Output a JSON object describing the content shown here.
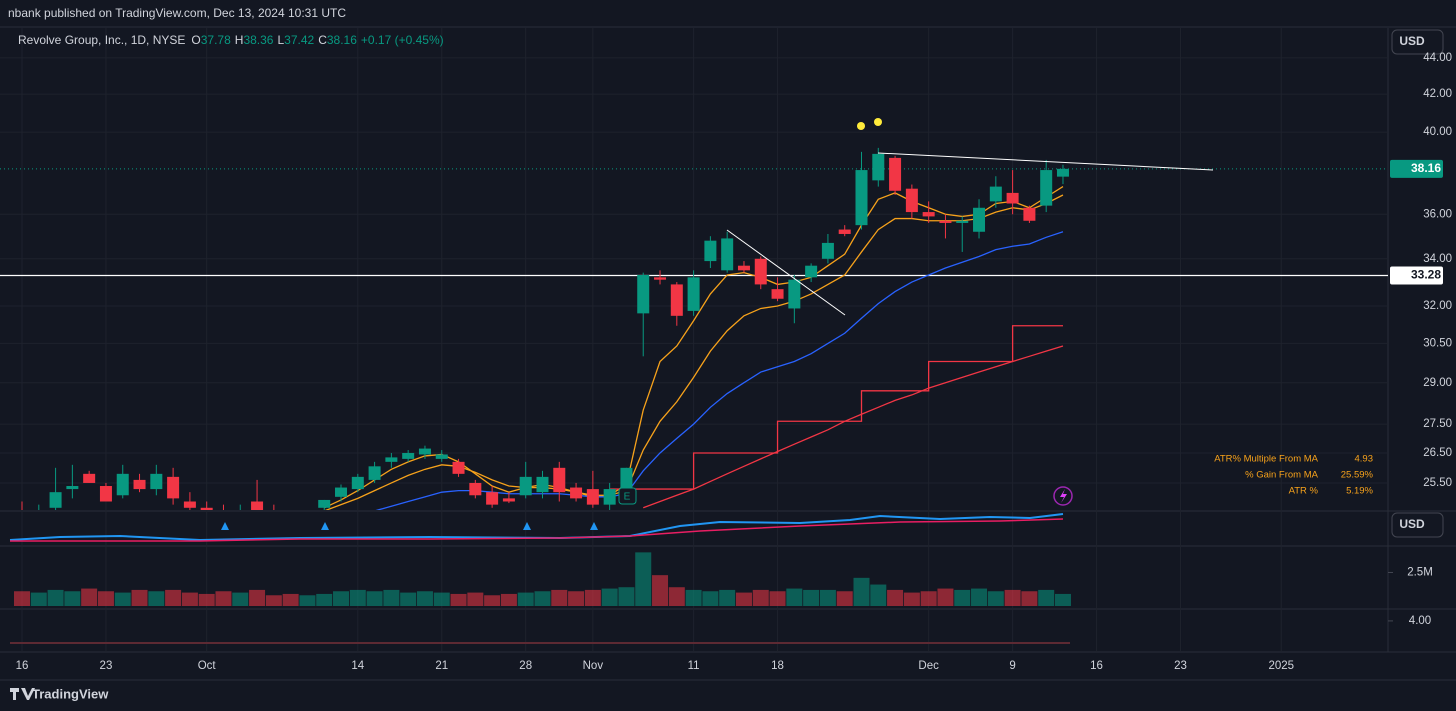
{
  "header": "nbank published on TradingView.com, Dec 13, 2024 10:31 UTC",
  "footer": "TradingView",
  "chart_data": {
    "type": "candlestick",
    "symbol": "Revolve Group, Inc., 1D, NYSE",
    "ohlc_labels": [
      "O",
      "H",
      "L",
      "C"
    ],
    "change": "+0.17 (+0.45%)",
    "currency": "USD",
    "pane_currency": "USD",
    "earnings_marker": "E",
    "up_color": "#089981",
    "down_color": "#f23645",
    "log_scale": true,
    "grid": true,
    "ylim": [
      24.63,
      45.72
    ],
    "yticks": [
      {
        "value": 25.5,
        "label": "25.50"
      },
      {
        "value": 26.5,
        "label": "26.50"
      },
      {
        "value": 27.5,
        "label": "27.50"
      },
      {
        "value": 29,
        "label": "29.00"
      },
      {
        "value": 30.5,
        "label": "30.50"
      },
      {
        "value": 32,
        "label": "32.00"
      },
      {
        "value": 34,
        "label": "34.00"
      },
      {
        "value": 36,
        "label": "36.00"
      },
      {
        "value": 40,
        "label": "40.00"
      },
      {
        "value": 42,
        "label": "42.00"
      },
      {
        "value": 44,
        "label": "44.00"
      }
    ],
    "level": 33.28,
    "categories": [
      "16",
      null,
      null,
      null,
      null,
      "23",
      null,
      null,
      null,
      null,
      null,
      "Oct",
      null,
      null,
      null,
      null,
      null,
      null,
      null,
      null,
      "14",
      null,
      null,
      null,
      null,
      "21",
      null,
      null,
      null,
      null,
      "28",
      null,
      null,
      null,
      "Nov",
      null,
      null,
      null,
      null,
      null,
      "11",
      null,
      null,
      null,
      null,
      "18",
      null,
      null,
      null,
      null,
      null,
      null,
      null,
      null,
      "Dec",
      null,
      null,
      null,
      null,
      "9",
      null,
      null,
      null,
      null,
      "16",
      null,
      null,
      null,
      null,
      "23",
      null,
      null,
      null,
      null,
      null,
      "2025"
    ],
    "open": [
      24.6,
      24.5,
      24.7,
      25.3,
      25.8,
      25.4,
      25.1,
      25.6,
      25.3,
      25.7,
      24.9,
      24.7,
      24.6,
      24.5,
      24.9,
      24.5,
      24.4,
      24.3,
      24.7,
      25.05,
      25.3,
      25.6,
      26.2,
      26.3,
      26.45,
      26.3,
      26.2,
      25.5,
      25.2,
      25.0,
      25.1,
      25.2,
      26.0,
      25.35,
      25.3,
      24.8,
      25.3,
      31.7,
      33.2,
      32.9,
      31.8,
      33.9,
      33.5,
      33.7,
      34.0,
      32.7,
      31.9,
      33.2,
      34.0,
      35.3,
      35.5,
      37.6,
      38.7,
      37.2,
      36.1,
      35.7,
      35.6,
      35.2,
      36.6,
      37.0,
      36.3,
      36.4,
      37.78,
      null,
      null,
      null,
      null,
      null,
      null,
      null,
      null,
      null,
      null,
      null,
      null,
      null
    ],
    "high": [
      24.9,
      24.8,
      26.0,
      26.1,
      25.9,
      25.5,
      26.1,
      25.8,
      26.1,
      26.0,
      25.2,
      24.9,
      24.8,
      24.8,
      25.6,
      24.8,
      24.6,
      24.6,
      24.95,
      25.45,
      25.8,
      26.2,
      26.5,
      26.6,
      26.75,
      26.6,
      26.3,
      25.6,
      25.4,
      25.2,
      26.2,
      25.9,
      26.2,
      25.5,
      25.9,
      25.5,
      26.0,
      33.4,
      33.5,
      33.0,
      33.5,
      35.0,
      35.2,
      33.9,
      34.1,
      33.2,
      33.3,
      33.8,
      35.1,
      35.5,
      39.0,
      39.2,
      38.8,
      37.4,
      36.6,
      36.0,
      35.9,
      36.7,
      37.8,
      38.1,
      36.4,
      38.6,
      38.36,
      null,
      null,
      null,
      null,
      null,
      null,
      null,
      null,
      null,
      null,
      null,
      null,
      null
    ],
    "low": [
      24.3,
      24.2,
      24.5,
      25.0,
      25.5,
      24.9,
      25.0,
      25.2,
      25.1,
      24.8,
      24.6,
      24.3,
      24.2,
      24.2,
      24.5,
      24.2,
      24.1,
      24.0,
      24.5,
      24.9,
      25.2,
      25.5,
      26.0,
      26.2,
      26.3,
      26.2,
      25.7,
      25.0,
      24.7,
      24.85,
      25.0,
      25.0,
      24.9,
      24.9,
      24.7,
      24.6,
      25.2,
      30.0,
      32.9,
      31.2,
      31.6,
      33.6,
      33.4,
      33.4,
      32.7,
      32.2,
      31.3,
      33.0,
      33.8,
      35.0,
      35.3,
      37.3,
      36.9,
      35.8,
      35.6,
      34.9,
      34.3,
      34.9,
      36.3,
      36.0,
      35.6,
      36.1,
      37.42,
      null,
      null,
      null,
      null,
      null,
      null,
      null,
      null,
      null,
      null,
      null,
      null,
      null
    ],
    "close": [
      24.5,
      24.6,
      25.2,
      25.4,
      25.5,
      24.9,
      25.8,
      25.3,
      25.8,
      25.0,
      24.7,
      24.6,
      24.5,
      24.6,
      24.6,
      24.4,
      24.3,
      24.5,
      24.95,
      25.35,
      25.7,
      26.05,
      26.35,
      26.5,
      26.65,
      26.45,
      25.8,
      25.1,
      24.8,
      24.9,
      25.7,
      25.7,
      25.2,
      25.0,
      24.8,
      25.3,
      26.0,
      33.3,
      33.1,
      31.6,
      33.2,
      34.8,
      34.9,
      33.5,
      32.9,
      32.3,
      33.1,
      33.7,
      34.7,
      35.1,
      38.1,
      38.9,
      37.1,
      36.1,
      35.9,
      35.6,
      35.7,
      36.3,
      37.3,
      36.5,
      35.7,
      38.1,
      38.16,
      null,
      null,
      null,
      null,
      null,
      null,
      null,
      null,
      null,
      null,
      null,
      null,
      null
    ],
    "overlays": [
      {
        "color": "#f7a21b",
        "style": "line",
        "values": [
          null,
          null,
          null,
          null,
          null,
          null,
          null,
          null,
          null,
          null,
          null,
          null,
          null,
          null,
          null,
          null,
          null,
          null,
          24.7,
          24.95,
          25.25,
          25.6,
          25.95,
          26.2,
          26.4,
          26.45,
          26.2,
          25.8,
          25.4,
          25.2,
          25.35,
          25.45,
          25.35,
          25.2,
          25.05,
          25.1,
          25.45,
          28.0,
          29.8,
          30.4,
          31.4,
          32.5,
          33.3,
          33.4,
          33.2,
          32.9,
          33.0,
          33.2,
          33.7,
          34.2,
          35.5,
          36.7,
          37.0,
          36.6,
          36.3,
          36.0,
          35.9,
          36.0,
          36.5,
          36.6,
          36.3,
          36.8,
          37.3,
          null,
          null,
          null,
          null,
          null,
          null,
          null,
          null,
          null,
          null,
          null,
          null,
          null
        ]
      },
      {
        "color": "#f7a21b",
        "style": "line",
        "values": [
          null,
          null,
          null,
          null,
          null,
          null,
          null,
          null,
          null,
          null,
          null,
          null,
          null,
          null,
          null,
          null,
          null,
          null,
          24.6,
          24.8,
          25.0,
          25.25,
          25.5,
          25.75,
          25.95,
          26.1,
          26.05,
          25.85,
          25.6,
          25.4,
          25.35,
          25.35,
          25.3,
          25.2,
          25.1,
          25.1,
          25.25,
          26.6,
          27.6,
          28.3,
          29.2,
          30.2,
          31.0,
          31.6,
          31.9,
          32.0,
          32.2,
          32.5,
          32.9,
          33.3,
          34.3,
          35.3,
          35.8,
          35.8,
          35.7,
          35.7,
          35.7,
          35.8,
          36.1,
          36.3,
          36.2,
          36.5,
          36.9,
          null,
          null,
          null,
          null,
          null,
          null,
          null,
          null,
          null,
          null,
          null,
          null,
          null
        ]
      },
      {
        "color": "#2962ff",
        "style": "line",
        "values": [
          null,
          null,
          null,
          null,
          null,
          null,
          null,
          null,
          null,
          null,
          null,
          null,
          null,
          null,
          null,
          null,
          null,
          null,
          24.3,
          24.4,
          24.5,
          24.6,
          24.75,
          24.9,
          25.05,
          25.2,
          25.25,
          25.25,
          25.2,
          25.15,
          25.15,
          25.15,
          25.15,
          25.1,
          25.05,
          25.05,
          25.15,
          25.9,
          26.5,
          27.0,
          27.5,
          28.1,
          28.6,
          29.0,
          29.4,
          29.6,
          29.8,
          30.1,
          30.5,
          30.9,
          31.5,
          32.1,
          32.6,
          33.0,
          33.3,
          33.6,
          33.85,
          34.1,
          34.4,
          34.55,
          34.65,
          34.95,
          35.2,
          null,
          null,
          null,
          null,
          null,
          null,
          null,
          null,
          null,
          null,
          null,
          null,
          null
        ]
      },
      {
        "color": "#f23645",
        "style": "step",
        "values": [
          null,
          null,
          null,
          null,
          null,
          null,
          null,
          null,
          null,
          null,
          null,
          null,
          null,
          null,
          null,
          null,
          null,
          null,
          null,
          null,
          null,
          null,
          null,
          null,
          null,
          null,
          null,
          null,
          null,
          null,
          null,
          null,
          null,
          null,
          null,
          25.3,
          25.3,
          25.3,
          25.3,
          25.3,
          26.5,
          26.5,
          26.5,
          26.5,
          26.5,
          27.6,
          27.6,
          27.6,
          27.6,
          27.6,
          28.7,
          28.7,
          28.7,
          28.7,
          29.8,
          29.8,
          29.8,
          29.8,
          29.8,
          31.2,
          31.2,
          31.2,
          31.2,
          null,
          null,
          null,
          null,
          null,
          null,
          null,
          null,
          null,
          null,
          null,
          null,
          null
        ]
      },
      {
        "color": "#f23645",
        "style": "line",
        "values": [
          null,
          null,
          null,
          null,
          null,
          null,
          null,
          null,
          null,
          null,
          null,
          null,
          null,
          null,
          null,
          null,
          null,
          null,
          null,
          null,
          null,
          null,
          null,
          null,
          null,
          null,
          null,
          null,
          null,
          null,
          null,
          null,
          null,
          null,
          null,
          null,
          null,
          24.7,
          24.9,
          25.1,
          25.3,
          25.55,
          25.8,
          26.05,
          26.3,
          26.55,
          26.8,
          27.05,
          27.3,
          27.6,
          27.85,
          28.1,
          28.35,
          28.55,
          28.8,
          29.0,
          29.2,
          29.4,
          29.6,
          29.8,
          30.0,
          30.2,
          30.4,
          null,
          null,
          null,
          null,
          null,
          null,
          null,
          null,
          null,
          null,
          null,
          null,
          null
        ]
      }
    ],
    "volume": {
      "ylim": [
        0,
        4.4
      ],
      "yticks": [
        {
          "value": 2.5,
          "label": "2.5M"
        }
      ],
      "values": [
        1.1,
        1.0,
        1.2,
        1.1,
        1.3,
        1.1,
        1.0,
        1.2,
        1.1,
        1.2,
        1.0,
        0.9,
        1.1,
        1.0,
        1.2,
        0.8,
        0.9,
        0.8,
        0.9,
        1.1,
        1.2,
        1.1,
        1.2,
        1.0,
        1.1,
        1.0,
        0.9,
        1.0,
        0.8,
        0.9,
        1.0,
        1.1,
        1.2,
        1.1,
        1.2,
        1.3,
        1.4,
        4.0,
        2.3,
        1.4,
        1.2,
        1.1,
        1.2,
        1.0,
        1.2,
        1.1,
        1.3,
        1.2,
        1.2,
        1.1,
        2.1,
        1.6,
        1.2,
        1.0,
        1.1,
        1.3,
        1.2,
        1.3,
        1.1,
        1.2,
        1.1,
        1.2,
        0.9,
        null,
        null,
        null,
        null,
        null,
        null,
        null,
        null,
        null,
        null,
        null,
        null,
        null
      ]
    },
    "lower_pane": {
      "ylim": [
        0,
        5.5
      ],
      "yticks": [
        {
          "value": 4,
          "label": "4.00"
        }
      ]
    },
    "stats": [
      {
        "label": "ATR% Multiple From MA",
        "value": "4.93"
      },
      {
        "label": "% Gain From MA",
        "value": "25.59%"
      },
      {
        "label": "ATR %",
        "value": "5.19%"
      }
    ]
  }
}
